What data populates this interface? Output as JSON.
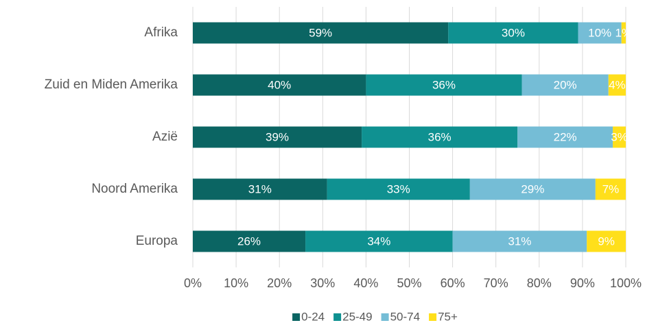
{
  "chart_data": {
    "type": "bar",
    "orientation": "horizontal",
    "stacked": true,
    "categories": [
      "Afrika",
      "Zuid en Miden Amerika",
      "Azië",
      "Noord Amerika",
      "Europa"
    ],
    "series": [
      {
        "name": "0-24",
        "color": "#0b6563",
        "values": [
          59,
          40,
          39,
          31,
          26
        ],
        "value_labels": [
          "59%",
          "40%",
          "39%",
          "31%",
          "26%"
        ]
      },
      {
        "name": "25-49",
        "color": "#0f9191",
        "values": [
          30,
          36,
          36,
          33,
          34
        ],
        "value_labels": [
          "30%",
          "36%",
          "36%",
          "33%",
          "34%"
        ]
      },
      {
        "name": "50-74",
        "color": "#75bdd6",
        "values": [
          10,
          20,
          22,
          29,
          31
        ],
        "value_labels": [
          "10%",
          "20%",
          "22%",
          "29%",
          "31%"
        ]
      },
      {
        "name": "75+",
        "color": "#ffdf1b",
        "values": [
          1,
          4,
          3,
          7,
          9
        ],
        "value_labels": [
          "1%",
          "4%",
          "3%",
          "7%",
          "9%"
        ]
      }
    ],
    "xlim": [
      0,
      100
    ],
    "xticks": [
      {
        "value": 0,
        "label": "0%"
      },
      {
        "value": 10,
        "label": "10%"
      },
      {
        "value": 20,
        "label": "20%"
      },
      {
        "value": 30,
        "label": "30%"
      },
      {
        "value": 40,
        "label": "40%"
      },
      {
        "value": 50,
        "label": "50%"
      },
      {
        "value": 60,
        "label": "60%"
      },
      {
        "value": 70,
        "label": "70%"
      },
      {
        "value": 80,
        "label": "80%"
      },
      {
        "value": 90,
        "label": "90%"
      },
      {
        "value": 100,
        "label": "100%"
      }
    ],
    "grid": true,
    "legend": "bottom"
  }
}
